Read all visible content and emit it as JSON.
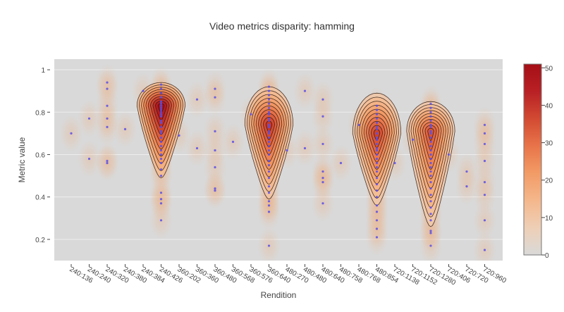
{
  "chart_data": {
    "type": "heatmap",
    "title": "Video metrics disparity: hamming",
    "xlabel": "Rendition",
    "ylabel": "Metric value",
    "categories": [
      "240:136",
      "240:240",
      "240:320",
      "240:380",
      "240:384",
      "240:426",
      "360:202",
      "360:360",
      "360:480",
      "360:568",
      "360:576",
      "360:640",
      "480:270",
      "480:480",
      "480:640",
      "480:758",
      "480:768",
      "480:854",
      "720:1138",
      "720:1152",
      "720:1280",
      "720:406",
      "720:720",
      "720:960"
    ],
    "yticks": [
      0.2,
      0.4,
      0.6,
      0.8,
      1
    ],
    "ylim": [
      0.1,
      1.05
    ],
    "colorbar": {
      "ticks": [
        0,
        10,
        20,
        30,
        40,
        50
      ],
      "range": [
        0,
        51
      ],
      "colorscale": [
        "#d9d9d9",
        "#eecfb6",
        "#f4b78c",
        "#f29b66",
        "#e8744a",
        "#d24a32",
        "#b82025",
        "#a50f15"
      ]
    },
    "densities": [
      {
        "category": "240:426",
        "center": 0.83,
        "spread": 0.075,
        "peak": 50,
        "extent": [
          0.49,
          0.94
        ]
      },
      {
        "category": "360:640",
        "center": 0.74,
        "spread": 0.11,
        "peak": 40,
        "extent": [
          0.39,
          0.92
        ]
      },
      {
        "category": "480:854",
        "center": 0.7,
        "spread": 0.12,
        "peak": 38,
        "extent": [
          0.36,
          0.89
        ]
      },
      {
        "category": "720:1280",
        "center": 0.71,
        "spread": 0.13,
        "peak": 35,
        "extent": [
          0.26,
          0.85
        ]
      }
    ],
    "points": [
      {
        "x": "240:136",
        "y": [
          0.7
        ]
      },
      {
        "x": "240:240",
        "y": [
          0.77,
          0.58
        ]
      },
      {
        "x": "240:320",
        "y": [
          0.94,
          0.91,
          0.83,
          0.77,
          0.73,
          0.57,
          0.56
        ]
      },
      {
        "x": "240:380",
        "y": [
          0.72
        ]
      },
      {
        "x": "240:384",
        "y": [
          0.9
        ]
      },
      {
        "x": "240:426",
        "y": [
          0.93,
          0.91,
          0.89,
          0.87,
          0.85,
          0.84,
          0.83,
          0.82,
          0.81,
          0.8,
          0.79,
          0.78,
          0.76,
          0.75,
          0.73,
          0.71,
          0.7,
          0.68,
          0.66,
          0.64,
          0.62,
          0.6,
          0.58,
          0.56,
          0.53,
          0.5,
          0.42,
          0.39,
          0.37,
          0.29
        ]
      },
      {
        "x": "360:202",
        "y": [
          0.69
        ]
      },
      {
        "x": "360:360",
        "y": [
          0.86,
          0.63
        ]
      },
      {
        "x": "360:480",
        "y": [
          0.91,
          0.87,
          0.71,
          0.62,
          0.54,
          0.44,
          0.43
        ]
      },
      {
        "x": "360:568",
        "y": [
          0.66
        ]
      },
      {
        "x": "360:576",
        "y": [
          0.79
        ]
      },
      {
        "x": "360:640",
        "y": [
          0.92,
          0.9,
          0.88,
          0.86,
          0.84,
          0.82,
          0.8,
          0.79,
          0.77,
          0.76,
          0.74,
          0.73,
          0.71,
          0.7,
          0.68,
          0.66,
          0.64,
          0.62,
          0.6,
          0.57,
          0.55,
          0.52,
          0.49,
          0.45,
          0.42,
          0.38,
          0.36,
          0.33,
          0.17
        ]
      },
      {
        "x": "480:270",
        "y": [
          0.62
        ]
      },
      {
        "x": "480:480",
        "y": [
          0.9,
          0.63
        ]
      },
      {
        "x": "480:640",
        "y": [
          0.86,
          0.78,
          0.65,
          0.52,
          0.49,
          0.47,
          0.37
        ]
      },
      {
        "x": "480:758",
        "y": [
          0.56
        ]
      },
      {
        "x": "480:768",
        "y": [
          0.74
        ]
      },
      {
        "x": "480:854",
        "y": [
          0.83,
          0.81,
          0.79,
          0.77,
          0.75,
          0.73,
          0.72,
          0.7,
          0.68,
          0.67,
          0.65,
          0.63,
          0.62,
          0.6,
          0.58,
          0.56,
          0.54,
          0.52,
          0.49,
          0.46,
          0.43,
          0.4,
          0.36,
          0.33,
          0.29,
          0.25,
          0.21
        ]
      },
      {
        "x": "720:1138",
        "y": [
          0.56
        ]
      },
      {
        "x": "720:1152",
        "y": [
          0.67
        ]
      },
      {
        "x": "720:1280",
        "y": [
          0.84,
          0.82,
          0.8,
          0.78,
          0.76,
          0.74,
          0.73,
          0.71,
          0.7,
          0.68,
          0.66,
          0.64,
          0.62,
          0.6,
          0.58,
          0.56,
          0.54,
          0.52,
          0.5,
          0.47,
          0.44,
          0.41,
          0.38,
          0.35,
          0.32,
          0.29,
          0.24,
          0.23,
          0.17
        ]
      },
      {
        "x": "720:406",
        "y": [
          0.6
        ]
      },
      {
        "x": "720:720",
        "y": [
          0.52,
          0.45
        ]
      },
      {
        "x": "720:960",
        "y": [
          0.74,
          0.7,
          0.65,
          0.57,
          0.47,
          0.41,
          0.29,
          0.15
        ]
      }
    ],
    "grid": true,
    "legend": "none",
    "colors": {
      "background": "#d9d9d9",
      "point": "#5b4fe6",
      "contour": "#2b1a14"
    }
  }
}
